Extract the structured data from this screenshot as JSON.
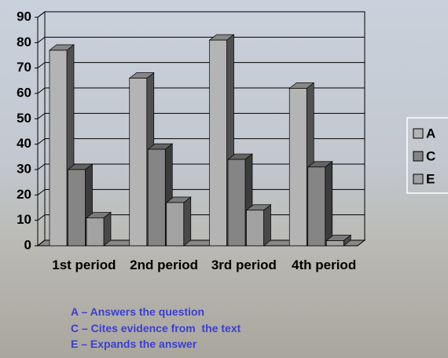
{
  "chart_data": {
    "type": "bar3d",
    "categories": [
      "1st period",
      "2nd period",
      "3rd period",
      "4th period"
    ],
    "series": [
      {
        "name": "A",
        "color": "#b4b4b4",
        "values": [
          77,
          66,
          81,
          62
        ]
      },
      {
        "name": "C",
        "color": "#858585",
        "values": [
          30,
          38,
          34,
          31
        ]
      },
      {
        "name": "E",
        "color": "#a2a2a2",
        "values": [
          11,
          17,
          14,
          2
        ]
      }
    ],
    "ylim": [
      0,
      90
    ],
    "yticks": [
      0,
      10,
      20,
      30,
      40,
      50,
      60,
      70,
      80,
      90
    ],
    "grid": true,
    "legend": "right",
    "annotations": [
      "A – Answers the question",
      "C – Cites evidence from  the text",
      "E – Expands the answer"
    ]
  }
}
